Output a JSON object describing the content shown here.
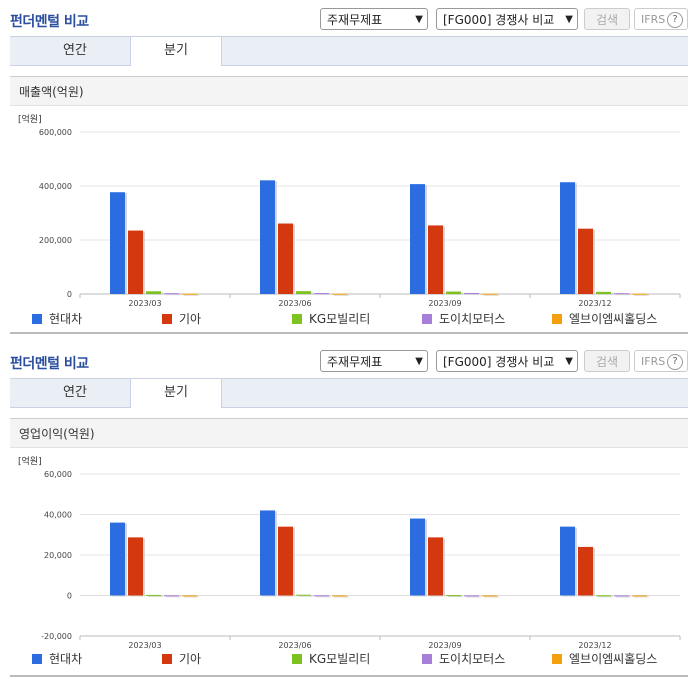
{
  "colors": {
    "hyundai": "#2b6de0",
    "kia": "#d3380f",
    "kg": "#7dc21e",
    "doichi": "#a87fd8",
    "elb": "#f2a10c"
  },
  "panels": [
    {
      "title": "펀더멘털 비교",
      "select1": "주재무제표",
      "select2": "[FG000] 경쟁사 비교",
      "search_label": "검색",
      "ifrs_label": "IFRS",
      "help_icon": "?",
      "tabs": [
        {
          "label": "연간"
        },
        {
          "label": "분기"
        }
      ],
      "active_tab": "분기",
      "subtitle": "매출액(억원)"
    },
    {
      "title": "펀더멘털 비교",
      "select1": "주재무제표",
      "select2": "[FG000] 경쟁사 비교",
      "search_label": "검색",
      "ifrs_label": "IFRS",
      "help_icon": "?",
      "tabs": [
        {
          "label": "연간"
        },
        {
          "label": "분기"
        }
      ],
      "active_tab": "분기",
      "subtitle": "영업이익(억원)"
    }
  ],
  "chart_data": [
    {
      "type": "bar",
      "title": "매출액(억원)",
      "unit_label": "[억원]",
      "categories": [
        "2023/03",
        "2023/06",
        "2023/09",
        "2023/12"
      ],
      "ylim": [
        0,
        600000
      ],
      "yticks": [
        "0",
        "200,000",
        "400,000",
        "600,000"
      ],
      "ytick_values": [
        0,
        200000,
        400000,
        600000
      ],
      "legend_position": "bottom",
      "series": [
        {
          "name": "현대차",
          "color": "#2b6de0",
          "values": [
            377000,
            421000,
            407000,
            414000
          ]
        },
        {
          "name": "기아",
          "color": "#d3380f",
          "values": [
            235000,
            261000,
            254000,
            242000
          ]
        },
        {
          "name": "KG모빌리티",
          "color": "#7dc21e",
          "values": [
            10000,
            10500,
            9000,
            8000
          ]
        },
        {
          "name": "도이치모터스",
          "color": "#a87fd8",
          "values": [
            3000,
            3500,
            3800,
            3000
          ]
        },
        {
          "name": "엘브이엠씨홀딩스",
          "color": "#f2a10c",
          "values": [
            1000,
            1000,
            1000,
            1000
          ]
        }
      ]
    },
    {
      "type": "bar",
      "title": "영업이익(억원)",
      "unit_label": "[억원]",
      "categories": [
        "2023/03",
        "2023/06",
        "2023/09",
        "2023/12"
      ],
      "ylim": [
        -20000,
        60000
      ],
      "yticks": [
        "-20,000",
        "0",
        "20,000",
        "40,000",
        "60,000"
      ],
      "ytick_values": [
        -20000,
        0,
        20000,
        40000,
        60000
      ],
      "legend_position": "bottom",
      "series": [
        {
          "name": "현대차",
          "color": "#2b6de0",
          "values": [
            36000,
            42000,
            38000,
            34000
          ]
        },
        {
          "name": "기아",
          "color": "#d3380f",
          "values": [
            28700,
            34000,
            28700,
            24000
          ]
        },
        {
          "name": "KG모빌리티",
          "color": "#7dc21e",
          "values": [
            300,
            400,
            200,
            100
          ]
        },
        {
          "name": "도이치모터스",
          "color": "#a87fd8",
          "values": [
            100,
            100,
            50,
            50
          ]
        },
        {
          "name": "엘브이엠씨홀딩스",
          "color": "#f2a10c",
          "values": [
            50,
            50,
            50,
            50
          ]
        }
      ]
    }
  ]
}
